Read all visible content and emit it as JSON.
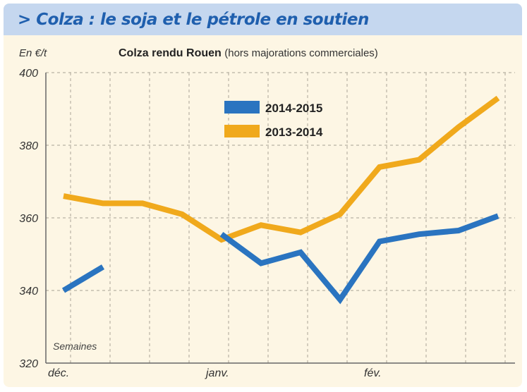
{
  "header": {
    "title": "> Colza : le soja et le pétrole en soutien"
  },
  "unit_label": "En €/t",
  "chart_title_main": "Colza rendu Rouen",
  "chart_title_sub": "(hors majorations commerciales)",
  "weeks_label": "Semaines",
  "colors": {
    "header_bg": "#c5d7ef",
    "title": "#1f5fae",
    "panel_bg": "#fdf6e4",
    "series_2014_2015": "#2a74c0",
    "series_2013_2014": "#f0a91c"
  },
  "chart_data": {
    "type": "line",
    "x": [
      0,
      1,
      2,
      3,
      4,
      5,
      6,
      7,
      8,
      9,
      10,
      11,
      12
    ],
    "x_tick_labels": [
      {
        "x": 0,
        "label": "déc."
      },
      {
        "x": 4,
        "label": "janv."
      },
      {
        "x": 8,
        "label": "fév."
      }
    ],
    "xlabel": "Semaines",
    "ylabel": "En €/t",
    "ylim": [
      320,
      400
    ],
    "yticks": [
      320,
      340,
      360,
      380,
      400
    ],
    "grid": true,
    "legend_position": "top-center",
    "series": [
      {
        "name": "2014-2015",
        "color": "#2a74c0",
        "values": [
          340,
          346.5,
          null,
          null,
          355.5,
          347.5,
          350.5,
          337.5,
          353.5,
          355.5,
          356.5,
          360.5,
          null
        ]
      },
      {
        "name": "2013-2014",
        "color": "#f0a91c",
        "values": [
          366,
          364,
          364,
          361,
          354,
          358,
          356,
          361,
          374,
          376,
          385,
          393,
          null
        ]
      }
    ]
  }
}
